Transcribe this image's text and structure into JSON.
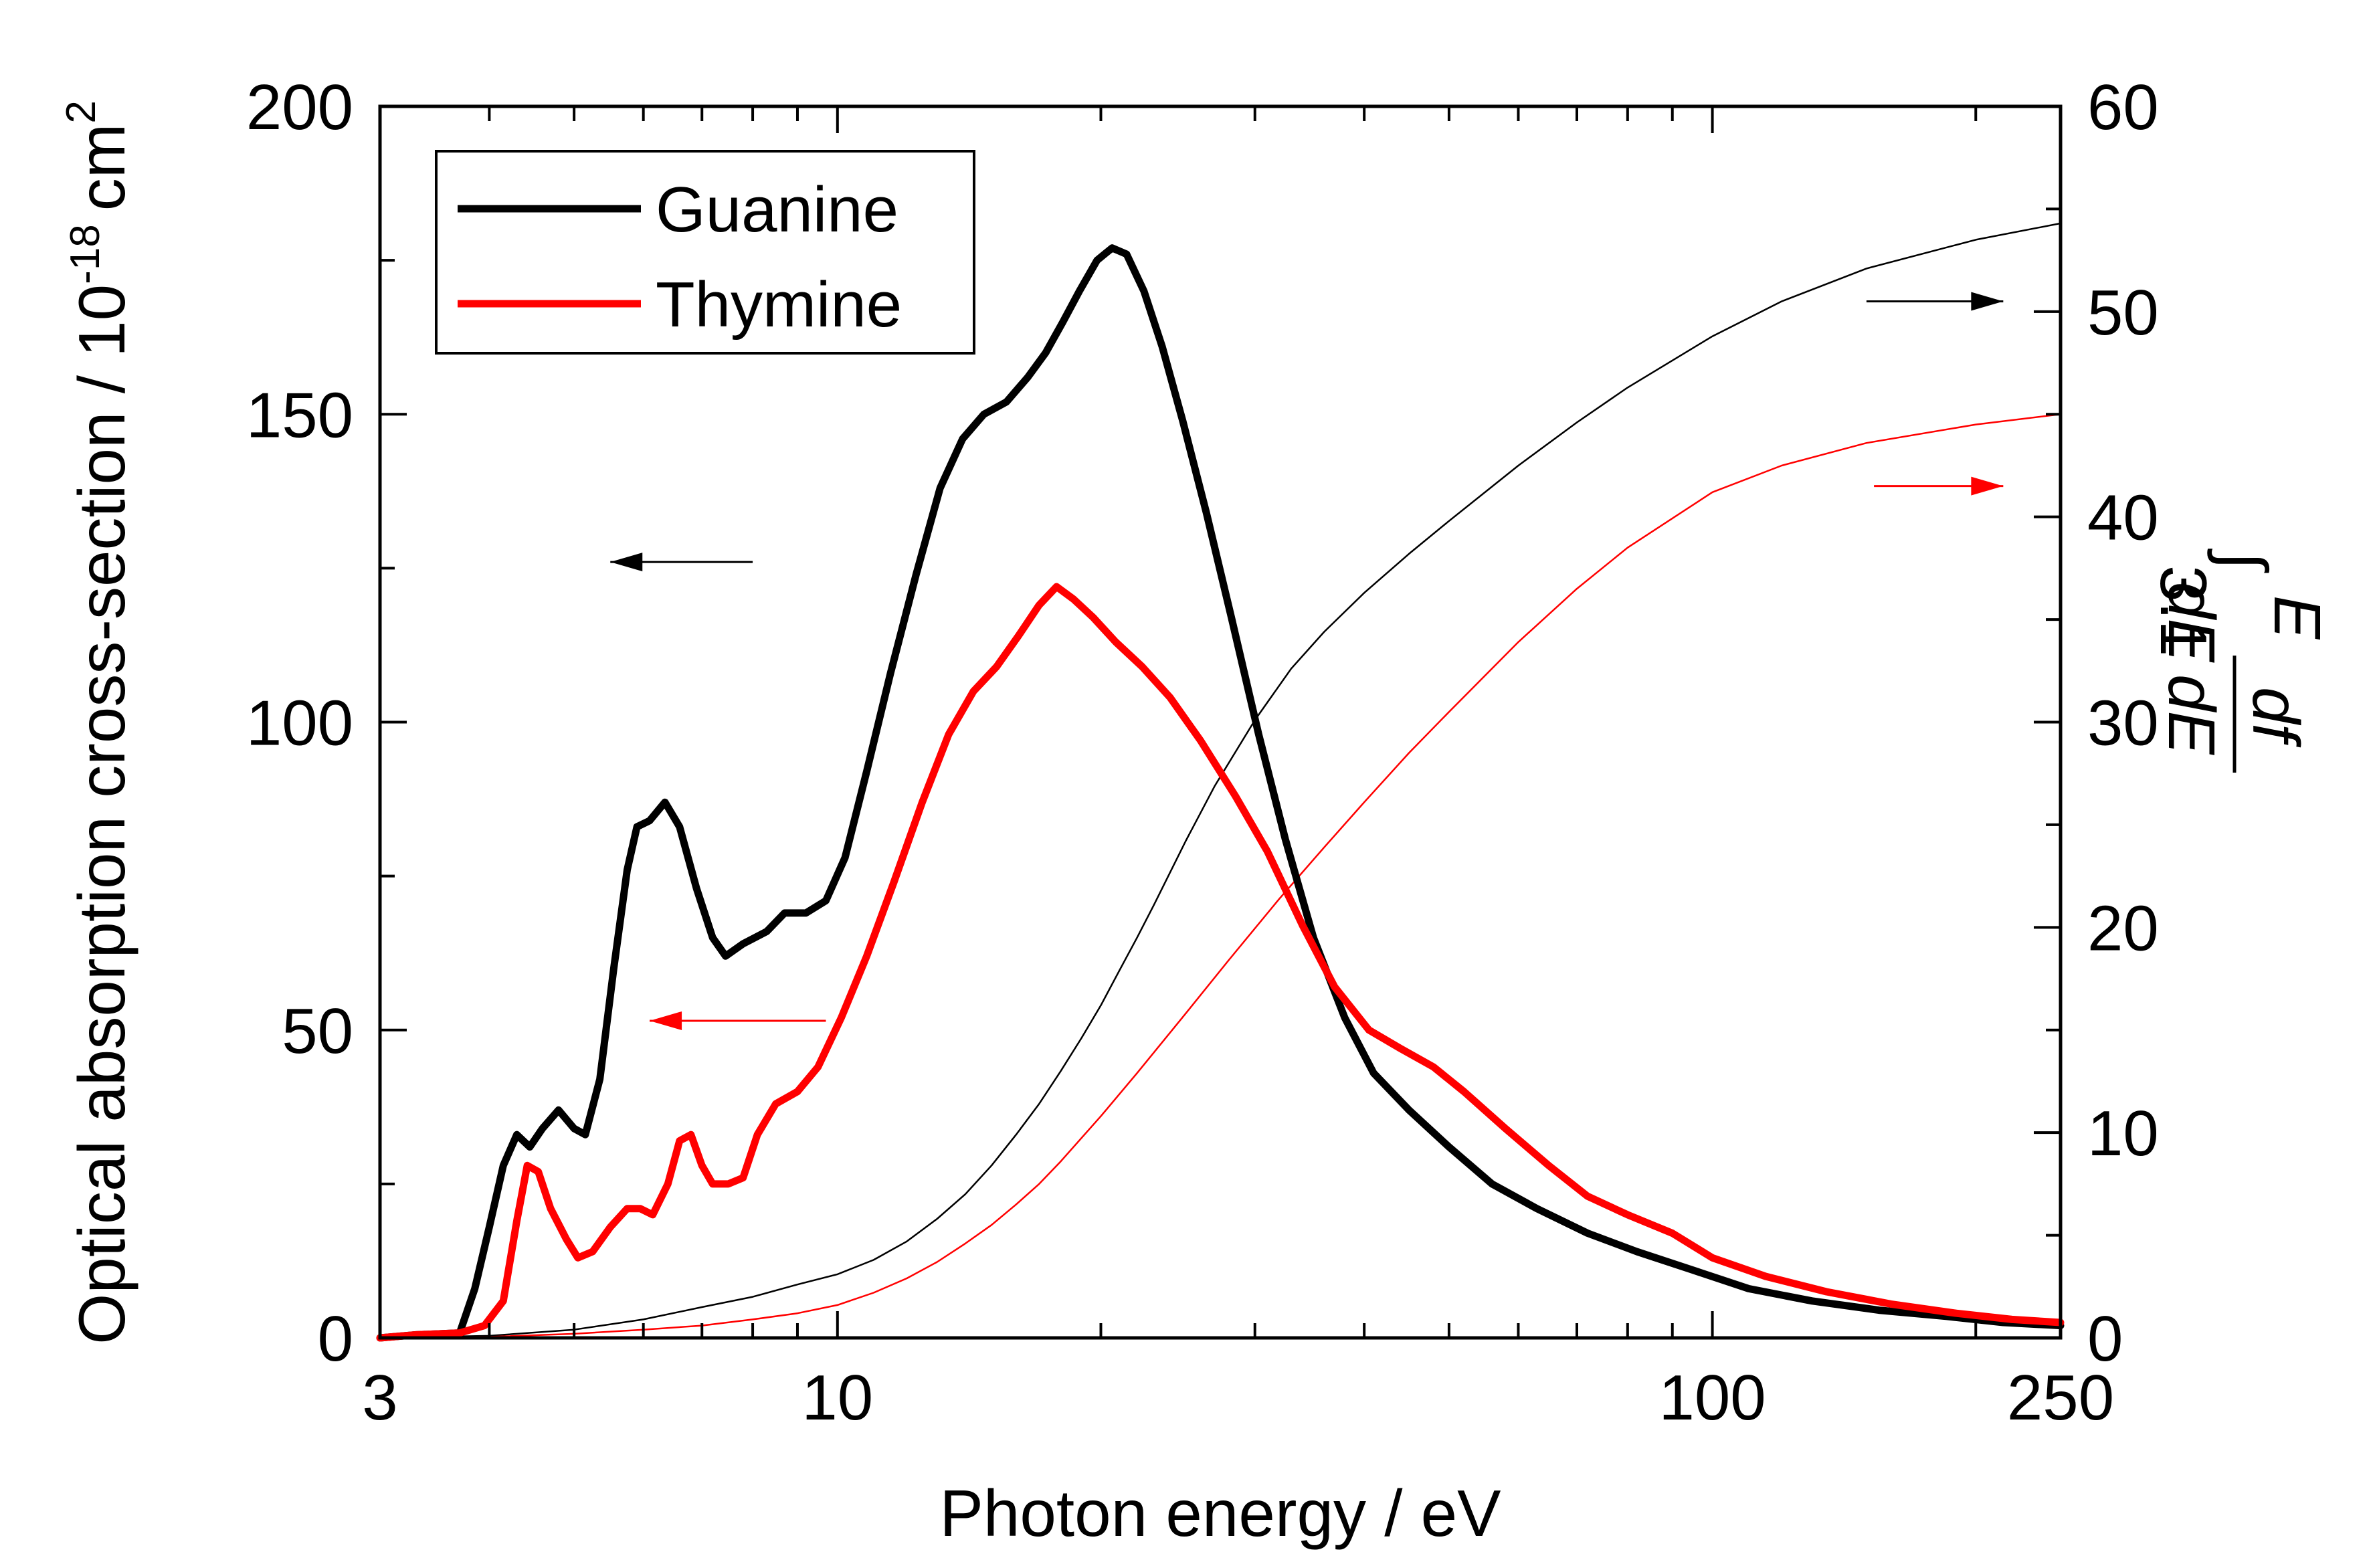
{
  "chart_data": {
    "type": "line",
    "x_scale": "log",
    "xlabel": "Photon energy / eV",
    "ylabel_left": "Optical absorption cross-section / 10",
    "ylabel_left_exponent": "-18",
    "ylabel_left_unit": "cm",
    "ylabel_left_unit_exponent": "2",
    "ylabel_right": {
      "integral_sign": "∫",
      "upper_limit": "E",
      "lower_limit": "3.1",
      "numerator": "df",
      "denominator": "dE",
      "differential": "dE"
    },
    "xlim": [
      3,
      250
    ],
    "ylim_left": [
      0,
      200
    ],
    "ylim_right": [
      0,
      60
    ],
    "x_ticks": [
      {
        "value": 3,
        "label": "3"
      },
      {
        "value": 10,
        "label": "10"
      },
      {
        "value": 100,
        "label": "100"
      },
      {
        "value": 250,
        "label": "250"
      }
    ],
    "y_left_ticks": [
      {
        "value": 0,
        "label": "0"
      },
      {
        "value": 50,
        "label": "50"
      },
      {
        "value": 100,
        "label": "100"
      },
      {
        "value": 150,
        "label": "150"
      },
      {
        "value": 200,
        "label": "200"
      }
    ],
    "y_right_ticks": [
      {
        "value": 0,
        "label": "0"
      },
      {
        "value": 10,
        "label": "10"
      },
      {
        "value": 20,
        "label": "20"
      },
      {
        "value": 30,
        "label": "30"
      },
      {
        "value": 40,
        "label": "40"
      },
      {
        "value": 50,
        "label": "50"
      },
      {
        "value": 60,
        "label": "60"
      }
    ],
    "legend": {
      "position": "top-left",
      "entries": [
        {
          "name": "Guanine",
          "color": "#000000"
        },
        {
          "name": "Thymine",
          "color": "#ff0000"
        }
      ]
    },
    "series": [
      {
        "name": "Guanine",
        "axis": "left",
        "color": "#000000",
        "style": "thick",
        "points": [
          [
            3.0,
            0
          ],
          [
            3.3,
            0.5
          ],
          [
            3.7,
            0.8
          ],
          [
            3.85,
            8
          ],
          [
            4.0,
            18
          ],
          [
            4.15,
            28
          ],
          [
            4.3,
            33
          ],
          [
            4.45,
            31
          ],
          [
            4.6,
            34
          ],
          [
            4.8,
            37
          ],
          [
            5.0,
            34
          ],
          [
            5.15,
            33
          ],
          [
            5.35,
            42
          ],
          [
            5.55,
            60
          ],
          [
            5.75,
            76
          ],
          [
            5.9,
            83
          ],
          [
            6.1,
            84
          ],
          [
            6.35,
            87
          ],
          [
            6.6,
            83
          ],
          [
            6.9,
            73
          ],
          [
            7.2,
            65
          ],
          [
            7.45,
            62
          ],
          [
            7.8,
            64
          ],
          [
            8.3,
            66
          ],
          [
            8.7,
            69
          ],
          [
            9.2,
            69
          ],
          [
            9.7,
            71
          ],
          [
            10.2,
            78
          ],
          [
            10.8,
            92
          ],
          [
            11.5,
            108
          ],
          [
            12.3,
            124
          ],
          [
            13.1,
            138
          ],
          [
            13.9,
            146
          ],
          [
            14.7,
            150
          ],
          [
            15.6,
            152
          ],
          [
            16.5,
            156
          ],
          [
            17.3,
            160
          ],
          [
            18.1,
            165
          ],
          [
            18.9,
            170
          ],
          [
            19.8,
            175
          ],
          [
            20.6,
            177
          ],
          [
            21.4,
            176
          ],
          [
            22.4,
            170
          ],
          [
            23.5,
            161
          ],
          [
            24.8,
            149
          ],
          [
            26.4,
            134
          ],
          [
            28.2,
            117
          ],
          [
            30.3,
            98
          ],
          [
            32.5,
            81
          ],
          [
            35.0,
            65
          ],
          [
            38.0,
            52
          ],
          [
            41.0,
            43
          ],
          [
            45.0,
            37
          ],
          [
            50.0,
            31
          ],
          [
            56.0,
            25
          ],
          [
            63.0,
            21
          ],
          [
            72.0,
            17
          ],
          [
            82.0,
            14
          ],
          [
            95.0,
            11
          ],
          [
            110.0,
            8
          ],
          [
            130.0,
            6
          ],
          [
            155.0,
            4.5
          ],
          [
            185.0,
            3.5
          ],
          [
            215.0,
            2.5
          ],
          [
            250.0,
            2
          ]
        ]
      },
      {
        "name": "Thymine",
        "axis": "left",
        "color": "#ff0000",
        "style": "thick",
        "points": [
          [
            3.0,
            0
          ],
          [
            3.3,
            0.5
          ],
          [
            3.7,
            0.8
          ],
          [
            3.95,
            2
          ],
          [
            4.15,
            6
          ],
          [
            4.3,
            19
          ],
          [
            4.42,
            28
          ],
          [
            4.55,
            27
          ],
          [
            4.7,
            21
          ],
          [
            4.9,
            16
          ],
          [
            5.05,
            13
          ],
          [
            5.25,
            14
          ],
          [
            5.5,
            18
          ],
          [
            5.75,
            21
          ],
          [
            5.95,
            21
          ],
          [
            6.15,
            20
          ],
          [
            6.4,
            25
          ],
          [
            6.6,
            32
          ],
          [
            6.8,
            33
          ],
          [
            7.0,
            28
          ],
          [
            7.2,
            25
          ],
          [
            7.5,
            25
          ],
          [
            7.8,
            26
          ],
          [
            8.1,
            33
          ],
          [
            8.5,
            38
          ],
          [
            9.0,
            40
          ],
          [
            9.5,
            44
          ],
          [
            10.1,
            52
          ],
          [
            10.8,
            62
          ],
          [
            11.6,
            74
          ],
          [
            12.5,
            87
          ],
          [
            13.4,
            98
          ],
          [
            14.3,
            105
          ],
          [
            15.2,
            109
          ],
          [
            16.1,
            114
          ],
          [
            17.0,
            119
          ],
          [
            17.8,
            122
          ],
          [
            18.6,
            120
          ],
          [
            19.6,
            117
          ],
          [
            20.8,
            113
          ],
          [
            22.3,
            109
          ],
          [
            24.0,
            104
          ],
          [
            26.0,
            97
          ],
          [
            28.5,
            88
          ],
          [
            31.0,
            79
          ],
          [
            34.0,
            67
          ],
          [
            37.0,
            57
          ],
          [
            40.5,
            50
          ],
          [
            44.0,
            47
          ],
          [
            48.0,
            44
          ],
          [
            52.0,
            40
          ],
          [
            58.0,
            34
          ],
          [
            65.0,
            28
          ],
          [
            72.0,
            23
          ],
          [
            80.0,
            20
          ],
          [
            90.0,
            17
          ],
          [
            100.0,
            13
          ],
          [
            115.0,
            10
          ],
          [
            135.0,
            7.5
          ],
          [
            160.0,
            5.5
          ],
          [
            190.0,
            4
          ],
          [
            220.0,
            3
          ],
          [
            250.0,
            2.5
          ]
        ]
      },
      {
        "name": "Guanine integral",
        "axis": "right",
        "color": "#000000",
        "style": "thin",
        "points": [
          [
            3.0,
            0
          ],
          [
            4.0,
            0.1
          ],
          [
            5.0,
            0.4
          ],
          [
            6.0,
            0.9
          ],
          [
            7.0,
            1.5
          ],
          [
            8.0,
            2.0
          ],
          [
            9.0,
            2.6
          ],
          [
            10.0,
            3.1
          ],
          [
            11.0,
            3.8
          ],
          [
            12.0,
            4.7
          ],
          [
            13.0,
            5.8
          ],
          [
            14.0,
            7.0
          ],
          [
            15.0,
            8.4
          ],
          [
            16.0,
            9.9
          ],
          [
            17.0,
            11.4
          ],
          [
            18.0,
            13.0
          ],
          [
            19.0,
            14.6
          ],
          [
            20.0,
            16.2
          ],
          [
            21.0,
            17.9
          ],
          [
            22.0,
            19.5
          ],
          [
            23.0,
            21.1
          ],
          [
            25.0,
            24.2
          ],
          [
            27.0,
            26.9
          ],
          [
            30.0,
            30.1
          ],
          [
            33.0,
            32.6
          ],
          [
            36.0,
            34.4
          ],
          [
            40.0,
            36.3
          ],
          [
            45.0,
            38.2
          ],
          [
            50.0,
            39.8
          ],
          [
            60.0,
            42.5
          ],
          [
            70.0,
            44.6
          ],
          [
            80.0,
            46.3
          ],
          [
            100.0,
            48.8
          ],
          [
            120.0,
            50.5
          ],
          [
            150.0,
            52.1
          ],
          [
            200.0,
            53.5
          ],
          [
            250.0,
            54.3
          ]
        ]
      },
      {
        "name": "Thymine integral",
        "axis": "right",
        "color": "#ff0000",
        "style": "thin",
        "points": [
          [
            3.0,
            0
          ],
          [
            4.0,
            0.05
          ],
          [
            5.0,
            0.2
          ],
          [
            6.0,
            0.4
          ],
          [
            7.0,
            0.6
          ],
          [
            8.0,
            0.9
          ],
          [
            9.0,
            1.2
          ],
          [
            10.0,
            1.6
          ],
          [
            11.0,
            2.2
          ],
          [
            12.0,
            2.9
          ],
          [
            13.0,
            3.7
          ],
          [
            14.0,
            4.6
          ],
          [
            15.0,
            5.5
          ],
          [
            16.0,
            6.5
          ],
          [
            17.0,
            7.5
          ],
          [
            18.0,
            8.6
          ],
          [
            20.0,
            10.8
          ],
          [
            22.0,
            12.9
          ],
          [
            25.0,
            15.8
          ],
          [
            28.0,
            18.4
          ],
          [
            32.0,
            21.4
          ],
          [
            36.0,
            23.9
          ],
          [
            40.0,
            26.1
          ],
          [
            45.0,
            28.5
          ],
          [
            50.0,
            30.5
          ],
          [
            60.0,
            33.9
          ],
          [
            70.0,
            36.5
          ],
          [
            80.0,
            38.5
          ],
          [
            100.0,
            41.2
          ],
          [
            120.0,
            42.5
          ],
          [
            150.0,
            43.6
          ],
          [
            200.0,
            44.5
          ],
          [
            250.0,
            45.0
          ]
        ]
      }
    ],
    "annotations": [
      {
        "name": "guanine-left-arrow",
        "color": "#000000",
        "direction": "left",
        "x_from": 8.0,
        "x_to": 5.5,
        "y_left": 126
      },
      {
        "name": "thymine-left-arrow",
        "color": "#ff0000",
        "direction": "left",
        "x_from": 9.7,
        "x_to": 6.1,
        "y_left": 51.5
      },
      {
        "name": "guanine-right-arrow",
        "color": "#000000",
        "direction": "right",
        "x_from": 150,
        "x_to": 215,
        "y_right": 50.5
      },
      {
        "name": "thymine-right-arrow",
        "color": "#ff0000",
        "direction": "right",
        "x_from": 153,
        "x_to": 215,
        "y_right": 41.5
      }
    ]
  }
}
